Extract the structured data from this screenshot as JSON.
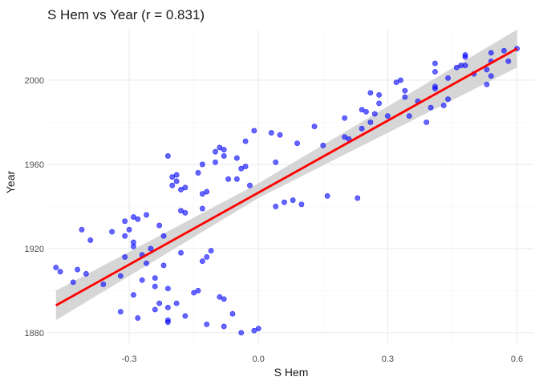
{
  "chart_data": {
    "type": "scatter",
    "title": "S Hem vs Year (r = 0.831)",
    "xlabel": "S Hem",
    "ylabel": "Year",
    "xlim": [
      -0.49,
      0.64
    ],
    "ylim": [
      1875,
      2024
    ],
    "x_ticks": [
      -0.3,
      0.0,
      0.3,
      0.6
    ],
    "x_tick_labels": [
      "-0.3",
      "0.0",
      "0.3",
      "0.6"
    ],
    "y_ticks": [
      1880,
      1920,
      1960,
      2000
    ],
    "y_tick_labels": [
      "1880",
      "1920",
      "1960",
      "2000"
    ],
    "grid": true,
    "colors": {
      "points": "#0000ff",
      "trend_line": "#ff0000",
      "confidence_band": "#c8c8c8"
    },
    "trend_line": {
      "x": [
        -0.47,
        0.6
      ],
      "y": [
        1893,
        2015
      ]
    },
    "confidence_band": {
      "x": [
        -0.47,
        0.0,
        0.6
      ],
      "lower": [
        1886,
        1944,
        2006
      ],
      "upper": [
        1900,
        1951,
        2024
      ]
    },
    "points": [
      {
        "x": -0.47,
        "y": 1911
      },
      {
        "x": -0.46,
        "y": 1909
      },
      {
        "x": -0.43,
        "y": 1904
      },
      {
        "x": -0.42,
        "y": 1910
      },
      {
        "x": -0.41,
        "y": 1929
      },
      {
        "x": -0.4,
        "y": 1908
      },
      {
        "x": -0.39,
        "y": 1924
      },
      {
        "x": -0.36,
        "y": 1903
      },
      {
        "x": -0.34,
        "y": 1928
      },
      {
        "x": -0.32,
        "y": 1907
      },
      {
        "x": -0.32,
        "y": 1890
      },
      {
        "x": -0.31,
        "y": 1916
      },
      {
        "x": -0.31,
        "y": 1926
      },
      {
        "x": -0.31,
        "y": 1933
      },
      {
        "x": -0.3,
        "y": 1929
      },
      {
        "x": -0.29,
        "y": 1935
      },
      {
        "x": -0.29,
        "y": 1923
      },
      {
        "x": -0.29,
        "y": 1921
      },
      {
        "x": -0.29,
        "y": 1898
      },
      {
        "x": -0.28,
        "y": 1934
      },
      {
        "x": -0.28,
        "y": 1887
      },
      {
        "x": -0.27,
        "y": 1917
      },
      {
        "x": -0.27,
        "y": 1905
      },
      {
        "x": -0.26,
        "y": 1936
      },
      {
        "x": -0.26,
        "y": 1913
      },
      {
        "x": -0.25,
        "y": 1920
      },
      {
        "x": -0.24,
        "y": 1906
      },
      {
        "x": -0.24,
        "y": 1902
      },
      {
        "x": -0.24,
        "y": 1891
      },
      {
        "x": -0.23,
        "y": 1931
      },
      {
        "x": -0.23,
        "y": 1894
      },
      {
        "x": -0.22,
        "y": 1926
      },
      {
        "x": -0.22,
        "y": 1912
      },
      {
        "x": -0.21,
        "y": 1964
      },
      {
        "x": -0.21,
        "y": 1901
      },
      {
        "x": -0.21,
        "y": 1892
      },
      {
        "x": -0.21,
        "y": 1886
      },
      {
        "x": -0.21,
        "y": 1885
      },
      {
        "x": -0.2,
        "y": 1954
      },
      {
        "x": -0.2,
        "y": 1950
      },
      {
        "x": -0.19,
        "y": 1955
      },
      {
        "x": -0.19,
        "y": 1952
      },
      {
        "x": -0.19,
        "y": 1894
      },
      {
        "x": -0.18,
        "y": 1948
      },
      {
        "x": -0.18,
        "y": 1938
      },
      {
        "x": -0.18,
        "y": 1918
      },
      {
        "x": -0.17,
        "y": 1949
      },
      {
        "x": -0.17,
        "y": 1937
      },
      {
        "x": -0.17,
        "y": 1888
      },
      {
        "x": -0.15,
        "y": 1899
      },
      {
        "x": -0.14,
        "y": 1956
      },
      {
        "x": -0.14,
        "y": 1900
      },
      {
        "x": -0.13,
        "y": 1960
      },
      {
        "x": -0.13,
        "y": 1946
      },
      {
        "x": -0.13,
        "y": 1939
      },
      {
        "x": -0.13,
        "y": 1914
      },
      {
        "x": -0.12,
        "y": 1947
      },
      {
        "x": -0.12,
        "y": 1916
      },
      {
        "x": -0.12,
        "y": 1884
      },
      {
        "x": -0.11,
        "y": 1919
      },
      {
        "x": -0.1,
        "y": 1966
      },
      {
        "x": -0.1,
        "y": 1961
      },
      {
        "x": -0.09,
        "y": 1968
      },
      {
        "x": -0.09,
        "y": 1897
      },
      {
        "x": -0.08,
        "y": 1967
      },
      {
        "x": -0.08,
        "y": 1964
      },
      {
        "x": -0.08,
        "y": 1883
      },
      {
        "x": -0.08,
        "y": 1896
      },
      {
        "x": -0.07,
        "y": 1953
      },
      {
        "x": -0.06,
        "y": 1889
      },
      {
        "x": -0.05,
        "y": 1963
      },
      {
        "x": -0.05,
        "y": 1953
      },
      {
        "x": -0.04,
        "y": 1958
      },
      {
        "x": -0.04,
        "y": 1880
      },
      {
        "x": -0.03,
        "y": 1971
      },
      {
        "x": -0.03,
        "y": 1959
      },
      {
        "x": -0.02,
        "y": 1950
      },
      {
        "x": -0.01,
        "y": 1976
      },
      {
        "x": -0.01,
        "y": 1881
      },
      {
        "x": 0.0,
        "y": 1882
      },
      {
        "x": 0.03,
        "y": 1975
      },
      {
        "x": 0.04,
        "y": 1961
      },
      {
        "x": 0.04,
        "y": 1940
      },
      {
        "x": 0.05,
        "y": 1974
      },
      {
        "x": 0.06,
        "y": 1942
      },
      {
        "x": 0.08,
        "y": 1943
      },
      {
        "x": 0.09,
        "y": 1970
      },
      {
        "x": 0.1,
        "y": 1941
      },
      {
        "x": 0.13,
        "y": 1978
      },
      {
        "x": 0.15,
        "y": 1969
      },
      {
        "x": 0.16,
        "y": 1945
      },
      {
        "x": 0.2,
        "y": 1982
      },
      {
        "x": 0.2,
        "y": 1973
      },
      {
        "x": 0.21,
        "y": 1972
      },
      {
        "x": 0.23,
        "y": 1944
      },
      {
        "x": 0.24,
        "y": 1986
      },
      {
        "x": 0.24,
        "y": 1977
      },
      {
        "x": 0.25,
        "y": 1985
      },
      {
        "x": 0.26,
        "y": 1994
      },
      {
        "x": 0.26,
        "y": 1980
      },
      {
        "x": 0.27,
        "y": 1984
      },
      {
        "x": 0.28,
        "y": 1993
      },
      {
        "x": 0.28,
        "y": 1989
      },
      {
        "x": 0.3,
        "y": 1983
      },
      {
        "x": 0.32,
        "y": 1999
      },
      {
        "x": 0.33,
        "y": 2000
      },
      {
        "x": 0.34,
        "y": 1995
      },
      {
        "x": 0.34,
        "y": 1992
      },
      {
        "x": 0.35,
        "y": 1983
      },
      {
        "x": 0.37,
        "y": 1990
      },
      {
        "x": 0.39,
        "y": 1980
      },
      {
        "x": 0.4,
        "y": 1987
      },
      {
        "x": 0.41,
        "y": 2008
      },
      {
        "x": 0.41,
        "y": 2004
      },
      {
        "x": 0.41,
        "y": 1997
      },
      {
        "x": 0.41,
        "y": 1996
      },
      {
        "x": 0.43,
        "y": 1988
      },
      {
        "x": 0.44,
        "y": 2001
      },
      {
        "x": 0.44,
        "y": 1991
      },
      {
        "x": 0.46,
        "y": 2006
      },
      {
        "x": 0.47,
        "y": 2007
      },
      {
        "x": 0.48,
        "y": 2012
      },
      {
        "x": 0.48,
        "y": 2011
      },
      {
        "x": 0.48,
        "y": 2007
      },
      {
        "x": 0.5,
        "y": 2003
      },
      {
        "x": 0.53,
        "y": 2005
      },
      {
        "x": 0.53,
        "y": 1998
      },
      {
        "x": 0.54,
        "y": 2013
      },
      {
        "x": 0.54,
        "y": 2009
      },
      {
        "x": 0.54,
        "y": 2002
      },
      {
        "x": 0.57,
        "y": 2014
      },
      {
        "x": 0.58,
        "y": 2009
      },
      {
        "x": 0.6,
        "y": 2015
      }
    ]
  }
}
